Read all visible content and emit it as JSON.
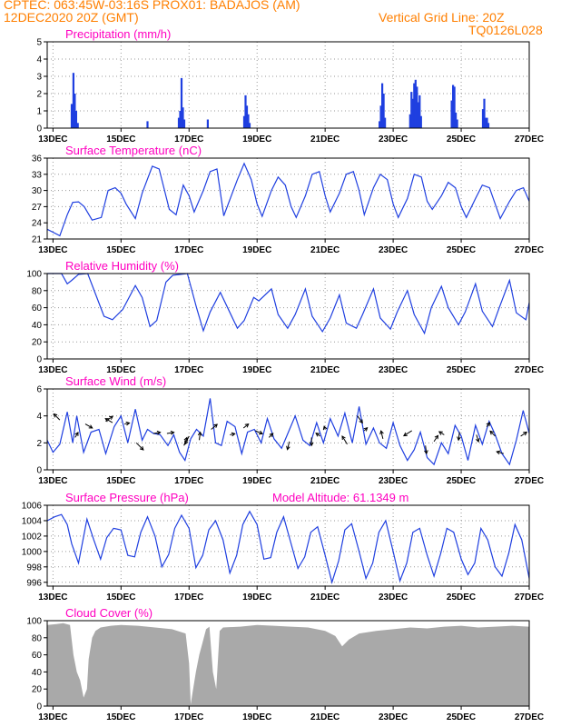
{
  "header": {
    "line1_left": "CPTEC:   063:45W-03:16S   PROX01: BADAJOS (AM)",
    "line2_left": "12DEC2020 20Z (GMT)",
    "line2_right": "Vertical Grid Line: 20Z",
    "line3_right": "TQ0126L028"
  },
  "colors": {
    "header": "#ff7f00",
    "title": "#ff00c0",
    "line": "#1f3fe0",
    "bar": "#1f3fe0",
    "cloud": "#a9a9a9",
    "grid": "#9a9a9a",
    "arrow": "#000000"
  },
  "chart_data": [
    {
      "id": "precip",
      "type": "bar",
      "title": "Precipitation (mm/h)",
      "ylim": [
        0,
        5
      ],
      "yticks": [
        0,
        1,
        2,
        3,
        4,
        5
      ],
      "xlim_days": [
        12.83,
        27.0
      ],
      "xticks": [
        "13DEC",
        "15DEC",
        "17DEC",
        "19DEC",
        "21DEC",
        "23DEC",
        "25DEC",
        "27DEC"
      ],
      "grid": true,
      "x": [
        13.55,
        13.6,
        13.64,
        13.68,
        13.73,
        15.78,
        16.7,
        16.74,
        16.78,
        16.82,
        16.86,
        17.55,
        18.62,
        18.66,
        18.7,
        18.74,
        18.78,
        22.6,
        22.64,
        22.68,
        22.72,
        22.76,
        23.5,
        23.54,
        23.58,
        23.62,
        23.66,
        23.7,
        23.74,
        23.78,
        23.82,
        24.72,
        24.76,
        24.8,
        24.84,
        24.88,
        25.64,
        25.68,
        25.72,
        25.76,
        25.8
      ],
      "values": [
        1.4,
        3.2,
        2.0,
        1.0,
        0.3,
        0.4,
        0.6,
        1.0,
        2.9,
        1.2,
        0.5,
        0.5,
        0.7,
        1.9,
        1.3,
        0.8,
        0.3,
        0.4,
        1.3,
        2.6,
        2.0,
        0.6,
        0.8,
        2.1,
        1.7,
        2.6,
        2.8,
        2.4,
        1.5,
        1.9,
        0.7,
        1.6,
        2.5,
        2.4,
        0.9,
        0.5,
        1.1,
        1.7,
        0.6,
        0.6,
        0.3
      ]
    },
    {
      "id": "temperature",
      "type": "line",
      "title": "Surface Temperature (nC)",
      "ylim": [
        21,
        36
      ],
      "yticks": [
        21,
        24,
        27,
        30,
        33,
        36
      ],
      "xlim_days": [
        12.83,
        27.0
      ],
      "xticks": [
        "13DEC",
        "15DEC",
        "17DEC",
        "19DEC",
        "21DEC",
        "23DEC",
        "25DEC",
        "27DEC"
      ],
      "grid": true,
      "x": [
        12.83,
        13.2,
        13.42,
        13.58,
        13.75,
        13.92,
        14.15,
        14.42,
        14.62,
        14.83,
        15.0,
        15.15,
        15.42,
        15.62,
        15.92,
        16.12,
        16.42,
        16.62,
        16.83,
        17.0,
        17.15,
        17.42,
        17.62,
        17.82,
        18.02,
        18.42,
        18.62,
        18.83,
        19.0,
        19.15,
        19.42,
        19.62,
        19.83,
        20.0,
        20.15,
        20.42,
        20.62,
        20.83,
        21.0,
        21.15,
        21.42,
        21.62,
        21.83,
        22.0,
        22.15,
        22.42,
        22.62,
        22.83,
        23.0,
        23.15,
        23.42,
        23.62,
        23.83,
        24.0,
        24.15,
        24.42,
        24.62,
        24.83,
        25.0,
        25.15,
        25.42,
        25.62,
        25.83,
        26.0,
        26.15,
        26.42,
        26.62,
        26.83,
        27.0
      ],
      "values": [
        22.8,
        21.6,
        25.5,
        27.8,
        27.9,
        27.0,
        24.5,
        25.0,
        30.0,
        30.5,
        29.5,
        27.5,
        24.8,
        29.5,
        34.5,
        34.0,
        26.5,
        25.5,
        31.0,
        29.0,
        26.0,
        30.0,
        33.5,
        34.0,
        25.3,
        32.0,
        35.0,
        32.0,
        27.5,
        25.2,
        30.0,
        32.5,
        31.0,
        27.0,
        25.0,
        29.0,
        33.0,
        33.5,
        29.0,
        26.0,
        29.5,
        33.0,
        33.5,
        30.0,
        25.5,
        30.5,
        33.0,
        32.0,
        27.5,
        25.0,
        28.5,
        33.0,
        32.5,
        28.0,
        26.5,
        29.0,
        31.5,
        30.5,
        27.0,
        25.0,
        28.5,
        31.0,
        30.5,
        27.5,
        24.8,
        28.0,
        30.0,
        30.5,
        28.0
      ]
    },
    {
      "id": "humidity",
      "type": "line",
      "title": "Relative Humidity (%)",
      "ylim": [
        0,
        100
      ],
      "yticks": [
        0,
        20,
        40,
        60,
        80,
        100
      ],
      "xlim_days": [
        12.83,
        27.0
      ],
      "xticks": [
        "13DEC",
        "15DEC",
        "17DEC",
        "19DEC",
        "21DEC",
        "23DEC",
        "25DEC",
        "27DEC"
      ],
      "grid": true,
      "x": [
        12.83,
        13.25,
        13.42,
        13.55,
        13.75,
        14.02,
        14.5,
        14.75,
        15.05,
        15.42,
        15.62,
        15.85,
        16.05,
        16.32,
        16.52,
        16.75,
        16.95,
        17.22,
        17.42,
        17.62,
        17.92,
        18.42,
        18.62,
        18.9,
        19.05,
        19.42,
        19.62,
        19.9,
        20.12,
        20.42,
        20.62,
        20.92,
        21.15,
        21.42,
        21.62,
        21.92,
        22.1,
        22.42,
        22.62,
        22.92,
        23.12,
        23.42,
        23.62,
        23.92,
        24.12,
        24.42,
        24.62,
        24.92,
        25.12,
        25.42,
        25.62,
        25.92,
        26.12,
        26.42,
        26.62,
        26.9,
        27.0
      ],
      "values": [
        100,
        100,
        88,
        92,
        99,
        100,
        50,
        46,
        58,
        86,
        72,
        38,
        45,
        90,
        98,
        99,
        100,
        60,
        33,
        55,
        78,
        36,
        45,
        72,
        68,
        82,
        52,
        36,
        52,
        82,
        50,
        32,
        48,
        75,
        42,
        36,
        52,
        82,
        48,
        35,
        55,
        80,
        52,
        30,
        60,
        85,
        60,
        40,
        55,
        88,
        56,
        38,
        60,
        92,
        54,
        46,
        66
      ]
    },
    {
      "id": "wind",
      "type": "line",
      "title": "Surface Wind (m/s)",
      "ylim": [
        0,
        6
      ],
      "yticks": [
        0,
        2,
        4,
        6
      ],
      "xlim_days": [
        12.83,
        27.0
      ],
      "xticks": [
        "13DEC",
        "15DEC",
        "17DEC",
        "19DEC",
        "21DEC",
        "23DEC",
        "25DEC",
        "27DEC"
      ],
      "grid": true,
      "x": [
        12.83,
        13.0,
        13.2,
        13.42,
        13.58,
        13.7,
        13.9,
        14.12,
        14.35,
        14.55,
        14.8,
        15.0,
        15.2,
        15.42,
        15.62,
        15.78,
        15.95,
        16.15,
        16.38,
        16.55,
        16.72,
        16.88,
        17.05,
        17.22,
        17.42,
        17.62,
        17.78,
        17.95,
        18.12,
        18.35,
        18.55,
        18.72,
        18.92,
        19.12,
        19.3,
        19.5,
        19.72,
        19.92,
        20.12,
        20.35,
        20.55,
        20.75,
        20.95,
        21.15,
        21.38,
        21.58,
        21.8,
        22.0,
        22.2,
        22.42,
        22.6,
        22.8,
        23.0,
        23.2,
        23.42,
        23.62,
        23.8,
        24.0,
        24.2,
        24.42,
        24.62,
        24.82,
        25.0,
        25.2,
        25.42,
        25.62,
        25.82,
        26.0,
        26.2,
        26.42,
        26.62,
        26.82,
        27.0
      ],
      "values": [
        2.2,
        1.3,
        1.9,
        4.3,
        2.0,
        4.0,
        1.3,
        2.8,
        3.0,
        1.2,
        3.2,
        4.0,
        2.0,
        4.5,
        2.2,
        3.0,
        2.7,
        2.6,
        1.8,
        2.6,
        1.3,
        0.7,
        2.3,
        3.0,
        2.5,
        5.3,
        2.0,
        1.8,
        3.6,
        3.2,
        1.2,
        2.8,
        3.0,
        2.0,
        3.8,
        2.3,
        1.6,
        2.8,
        4.0,
        2.2,
        1.8,
        3.5,
        2.0,
        3.8,
        2.5,
        4.2,
        2.0,
        4.7,
        1.9,
        3.1,
        2.0,
        1.6,
        3.5,
        1.8,
        0.7,
        1.5,
        2.8,
        0.9,
        0.4,
        2.0,
        1.2,
        3.3,
        2.5,
        0.7,
        3.3,
        1.9,
        3.6,
        2.6,
        1.2,
        0.4,
        2.2,
        4.4,
        2.7
      ],
      "arrows": {
        "x": [
          13.2,
          13.65,
          13.95,
          14.55,
          14.75,
          15.1,
          15.45,
          15.95,
          16.35,
          16.85,
          17.0,
          17.3,
          17.65,
          18.2,
          18.6,
          18.95,
          19.35,
          19.95,
          20.6,
          20.85,
          21.0,
          21.65,
          21.95,
          22.15,
          22.7,
          23.55,
          23.95,
          24.2,
          24.5,
          24.95,
          25.45,
          25.75,
          26.0,
          26.25,
          26.75
        ],
        "values": [
          3.7,
          2.4,
          3.4,
          3.6,
          3.5,
          3.4,
          2.0,
          2.7,
          2.7,
          1.8,
          2.5,
          2.2,
          3.0,
          2.6,
          3.1,
          2.9,
          2.4,
          2.1,
          2.4,
          2.5,
          3.0,
          1.9,
          4.0,
          2.9,
          2.3,
          2.9,
          1.8,
          2.1,
          2.6,
          2.8,
          2.6,
          3.2,
          2.5,
          1.2,
          2.5
        ],
        "u": [
          -0.6,
          0.3,
          0.7,
          0.7,
          -0.7,
          0.5,
          0.7,
          0.7,
          0.7,
          0.3,
          -0.4,
          0.1,
          0.6,
          0.5,
          0.5,
          0.7,
          0.4,
          -0.2,
          0.0,
          -0.4,
          -0.1,
          -0.5,
          0.5,
          0.3,
          -0.2,
          -0.8,
          0.1,
          0.4,
          -0.5,
          -0.1,
          0.2,
          0.3,
          -0.5,
          -0.7,
          0.6
        ],
        "v": [
          0.6,
          0.5,
          -0.4,
          0.5,
          0.4,
          0.1,
          -0.7,
          0.1,
          0.1,
          0.8,
          -0.8,
          0.8,
          0.5,
          0.1,
          0.4,
          -0.3,
          0.4,
          -0.8,
          -0.8,
          0.3,
          0.3,
          0.8,
          -0.7,
          0.3,
          0.8,
          -0.5,
          -0.8,
          0.6,
          0.3,
          -0.8,
          -0.7,
          0.4,
          0.5,
          0.2,
          0.4
        ]
      }
    },
    {
      "id": "pressure",
      "type": "line",
      "title": "Surface Pressure (hPa)",
      "annotation": "Model Altitude: 61.1349 m",
      "ylim": [
        995.5,
        1006
      ],
      "yticks": [
        996,
        998,
        1000,
        1002,
        1004,
        1006
      ],
      "xlim_days": [
        12.83,
        27.0
      ],
      "xticks": [
        "13DEC",
        "15DEC",
        "17DEC",
        "19DEC",
        "21DEC",
        "23DEC",
        "25DEC",
        "27DEC"
      ],
      "grid": true,
      "x": [
        12.83,
        13.05,
        13.25,
        13.42,
        13.55,
        13.75,
        14.0,
        14.2,
        14.4,
        14.58,
        14.78,
        15.0,
        15.2,
        15.4,
        15.58,
        15.78,
        16.0,
        16.2,
        16.4,
        16.58,
        16.78,
        17.0,
        17.2,
        17.4,
        17.58,
        17.78,
        18.0,
        18.2,
        18.4,
        18.58,
        18.78,
        19.0,
        19.2,
        19.4,
        19.58,
        19.78,
        20.0,
        20.2,
        20.4,
        20.58,
        20.78,
        21.0,
        21.2,
        21.4,
        21.58,
        21.78,
        22.0,
        22.2,
        22.4,
        22.58,
        22.78,
        23.0,
        23.2,
        23.4,
        23.58,
        23.78,
        24.0,
        24.2,
        24.4,
        24.58,
        24.78,
        25.0,
        25.2,
        25.4,
        25.58,
        25.78,
        26.0,
        26.2,
        26.4,
        26.58,
        26.78,
        27.0
      ],
      "values": [
        1004.0,
        1004.5,
        1004.8,
        1003.5,
        1001.0,
        998.5,
        1004.2,
        1001.5,
        999.0,
        1001.8,
        1003.0,
        1002.8,
        999.5,
        999.3,
        1002.5,
        1004.5,
        1002.0,
        998.0,
        999.6,
        1003.0,
        1004.7,
        1003.0,
        997.9,
        999.5,
        1002.8,
        1004.0,
        1001.5,
        997.2,
        999.5,
        1003.5,
        1005.2,
        1003.5,
        999.0,
        999.2,
        1002.5,
        1004.5,
        1001.0,
        997.8,
        999.3,
        1002.5,
        1003.2,
        999.5,
        996.0,
        998.8,
        1002.8,
        1003.6,
        1000.0,
        996.5,
        998.5,
        1002.5,
        1004.0,
        1000.0,
        996.2,
        998.5,
        1002.5,
        1003.0,
        999.5,
        996.8,
        999.8,
        1003.0,
        1002.5,
        999.0,
        997.0,
        998.5,
        1003.0,
        1001.5,
        998.0,
        996.8,
        999.8,
        1003.5,
        1001.5,
        996.5
      ]
    },
    {
      "id": "cloud",
      "type": "area",
      "title": "Cloud Cover (%)",
      "ylim": [
        0,
        100
      ],
      "yticks": [
        0,
        20,
        40,
        60,
        80,
        100
      ],
      "xlim_days": [
        12.83,
        27.0
      ],
      "xticks": [
        "13DEC",
        "15DEC",
        "17DEC",
        "19DEC",
        "21DEC",
        "23DEC",
        "25DEC",
        "27DEC"
      ],
      "grid": false,
      "x": [
        12.83,
        13.1,
        13.3,
        13.5,
        13.6,
        13.7,
        13.8,
        13.9,
        14.0,
        14.05,
        14.15,
        14.25,
        14.4,
        14.7,
        15.0,
        15.5,
        16.0,
        16.5,
        16.9,
        17.0,
        17.05,
        17.1,
        17.2,
        17.3,
        17.4,
        17.5,
        17.6,
        17.7,
        17.8,
        17.9,
        18.0,
        18.5,
        19.0,
        19.5,
        20.0,
        20.5,
        21.0,
        21.3,
        21.5,
        21.7,
        22.0,
        22.5,
        23.0,
        23.5,
        24.0,
        24.5,
        25.0,
        25.5,
        26.0,
        26.5,
        27.0
      ],
      "values": [
        95,
        96,
        97,
        95,
        60,
        40,
        30,
        10,
        20,
        55,
        80,
        88,
        92,
        94,
        95,
        94,
        92,
        90,
        85,
        50,
        2,
        15,
        40,
        60,
        75,
        90,
        93,
        40,
        20,
        88,
        92,
        93,
        95,
        94,
        93,
        92,
        88,
        82,
        70,
        78,
        85,
        88,
        90,
        92,
        91,
        93,
        94,
        92,
        93,
        94,
        93
      ]
    }
  ]
}
